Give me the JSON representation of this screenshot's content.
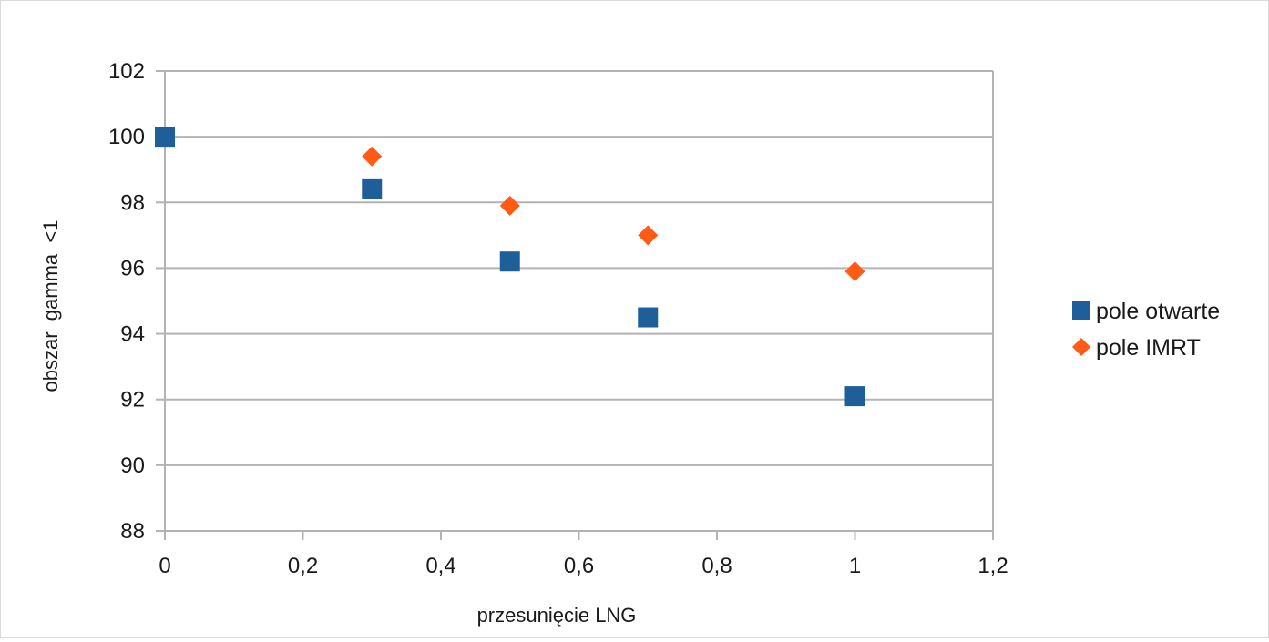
{
  "chart_data": {
    "type": "scatter",
    "title": "",
    "xlabel": "przesunięcie LNG",
    "ylabel": "obszar  gamma  <1",
    "xlim": [
      0,
      1.2
    ],
    "ylim": [
      88,
      102
    ],
    "x_ticks": [
      0,
      0.2,
      0.4,
      0.6,
      0.8,
      1,
      1.2
    ],
    "x_tick_labels": [
      "0",
      "0,2",
      "0,4",
      "0,6",
      "0,8",
      "1",
      "1,2"
    ],
    "y_ticks": [
      88,
      90,
      92,
      94,
      96,
      98,
      100,
      102
    ],
    "y_tick_labels": [
      "88",
      "90",
      "92",
      "94",
      "96",
      "98",
      "100",
      "102"
    ],
    "grid": "horizontal",
    "legend_position": "right",
    "series": [
      {
        "name": "pole otwarte",
        "marker": "square",
        "color": "#1f5f99",
        "x": [
          0,
          0.3,
          0.5,
          0.7,
          1
        ],
        "y": [
          100,
          98.4,
          96.2,
          94.5,
          92.1
        ]
      },
      {
        "name": "pole IMRT",
        "marker": "diamond",
        "color": "#ff5b14",
        "x": [
          0.3,
          0.5,
          0.7,
          1
        ],
        "y": [
          99.4,
          97.9,
          97.0,
          95.9
        ]
      }
    ]
  }
}
